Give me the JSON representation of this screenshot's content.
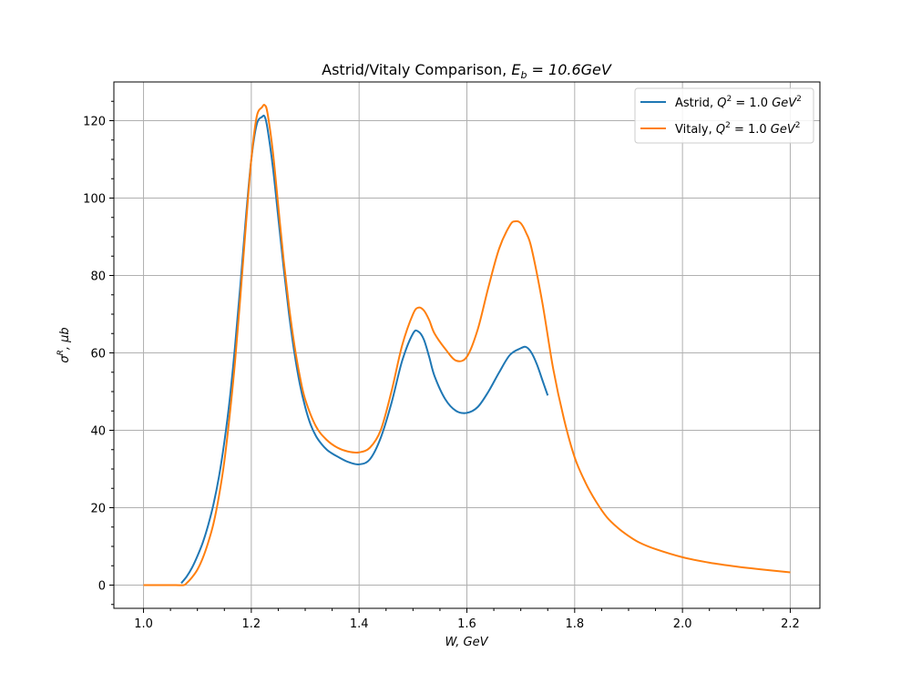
{
  "chart_data": {
    "type": "line",
    "title": "Astrid/Vitaly Comparison, E_b = 10.6GeV",
    "title_main": "Astrid/Vitaly Comparison, ",
    "title_math_base": "E",
    "title_math_sub": "b",
    "title_math_rest": " = 10.6GeV",
    "xlabel": "W, GeV",
    "ylabel_sigma": "σ",
    "ylabel_sup": "R",
    "ylabel_rest": ", μb",
    "xlim": [
      0.945,
      2.255
    ],
    "ylim": [
      -6,
      130
    ],
    "xticks": [
      1.0,
      1.2,
      1.4,
      1.6,
      1.8,
      2.0,
      2.2
    ],
    "xtick_labels": [
      "1.0",
      "1.2",
      "1.4",
      "1.6",
      "1.8",
      "2.0",
      "2.2"
    ],
    "yticks": [
      0,
      20,
      40,
      60,
      80,
      100,
      120
    ],
    "ytick_labels": [
      "0",
      "20",
      "40",
      "60",
      "80",
      "100",
      "120"
    ],
    "grid": true,
    "legend_position": "top-right",
    "series": [
      {
        "name": "Astrid, Q² = 1.0 GeV²",
        "name_prefix": "Astrid, ",
        "color": "#1f77b4",
        "x": [
          1.07,
          1.08,
          1.09,
          1.1,
          1.11,
          1.12,
          1.13,
          1.14,
          1.15,
          1.16,
          1.17,
          1.18,
          1.19,
          1.2,
          1.21,
          1.22,
          1.225,
          1.23,
          1.24,
          1.25,
          1.26,
          1.27,
          1.28,
          1.29,
          1.3,
          1.31,
          1.32,
          1.33,
          1.34,
          1.35,
          1.36,
          1.38,
          1.4,
          1.42,
          1.44,
          1.46,
          1.48,
          1.5,
          1.51,
          1.52,
          1.53,
          1.54,
          1.56,
          1.58,
          1.6,
          1.62,
          1.64,
          1.66,
          1.68,
          1.7,
          1.71,
          1.72,
          1.73,
          1.74,
          1.75
        ],
        "y": [
          0.5,
          2.2,
          4.5,
          7.5,
          11,
          15.5,
          21,
          28,
          37,
          48,
          62,
          78,
          95,
          110,
          119,
          121,
          121,
          118,
          108,
          95,
          82,
          70,
          60,
          52,
          46,
          41.5,
          38.5,
          36.5,
          35,
          34,
          33.2,
          31.8,
          31.2,
          32.5,
          38,
          47,
          58,
          65,
          65.5,
          63.5,
          59,
          54,
          48,
          45,
          44.5,
          46,
          50,
          55,
          59.5,
          61.2,
          61.5,
          60,
          57,
          53,
          49
        ]
      },
      {
        "name": "Vitaly, Q² = 1.0 GeV²",
        "name_prefix": "Vitaly, ",
        "color": "#ff7f0e",
        "x": [
          1.0,
          1.02,
          1.04,
          1.06,
          1.075,
          1.08,
          1.09,
          1.1,
          1.11,
          1.12,
          1.13,
          1.14,
          1.15,
          1.16,
          1.17,
          1.18,
          1.19,
          1.2,
          1.21,
          1.22,
          1.225,
          1.23,
          1.24,
          1.25,
          1.26,
          1.27,
          1.28,
          1.29,
          1.3,
          1.32,
          1.34,
          1.36,
          1.38,
          1.4,
          1.42,
          1.44,
          1.46,
          1.48,
          1.5,
          1.51,
          1.52,
          1.53,
          1.54,
          1.56,
          1.58,
          1.6,
          1.62,
          1.64,
          1.66,
          1.68,
          1.69,
          1.7,
          1.71,
          1.72,
          1.74,
          1.76,
          1.78,
          1.8,
          1.82,
          1.84,
          1.86,
          1.88,
          1.9,
          1.92,
          1.95,
          2.0,
          2.05,
          2.1,
          2.15,
          2.2
        ],
        "y": [
          0,
          0,
          0,
          0,
          0,
          0.5,
          2,
          4,
          7,
          11,
          16,
          23,
          32,
          44,
          58,
          75,
          93,
          110,
          121,
          123.5,
          124,
          122,
          112,
          98,
          84,
          72,
          62,
          54,
          48,
          41,
          37.5,
          35.5,
          34.5,
          34.3,
          35.5,
          40,
          50,
          62,
          70,
          71.7,
          71,
          68.5,
          65,
          61,
          58,
          59,
          66,
          77,
          87,
          93,
          94,
          93.5,
          91,
          87,
          73,
          56,
          43,
          33,
          26.5,
          21.5,
          17.5,
          14.8,
          12.7,
          11,
          9.3,
          7.2,
          5.8,
          4.8,
          4,
          3.3
        ]
      }
    ],
    "legend_q": "Q",
    "legend_q_sup": "2",
    "legend_eq": " = 1.0 ",
    "legend_gev": "GeV",
    "legend_gev_sup": "2"
  }
}
